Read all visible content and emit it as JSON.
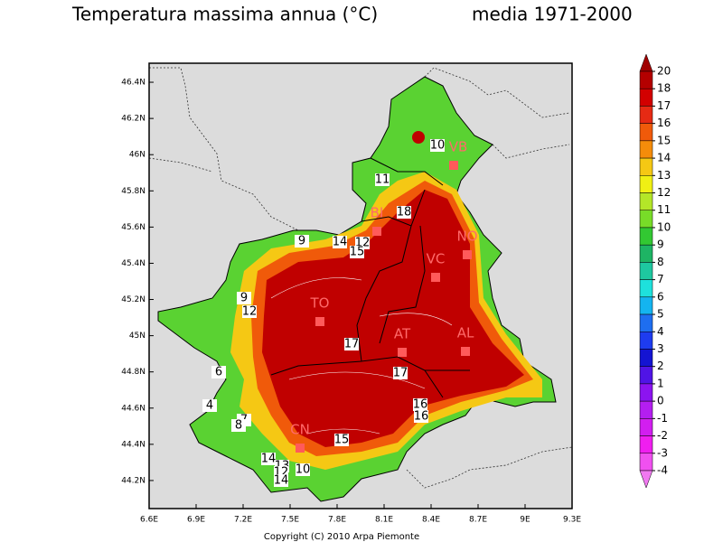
{
  "title": "Temperatura massima annua (°C)",
  "subtitle": "media 1971-2000",
  "map": {
    "xlim": [
      6.6,
      9.3
    ],
    "ylim": [
      44.045,
      46.505
    ],
    "lon_ticks": [
      {
        "value": 6.6,
        "label": "6.6E"
      },
      {
        "value": 6.9,
        "label": "6.9E"
      },
      {
        "value": 7.2,
        "label": "7.2E"
      },
      {
        "value": 7.5,
        "label": "7.5E"
      },
      {
        "value": 7.8,
        "label": "7.8E"
      },
      {
        "value": 8.1,
        "label": "8.1E"
      },
      {
        "value": 8.4,
        "label": "8.4E"
      },
      {
        "value": 8.7,
        "label": "8.7E"
      },
      {
        "value": 9,
        "label": "9E"
      },
      {
        "value": 9.3,
        "label": "9.3E"
      }
    ],
    "lat_ticks": [
      {
        "value": 46.4,
        "label": "46.4N"
      },
      {
        "value": 46.2,
        "label": "46.2N"
      },
      {
        "value": 46,
        "label": "46N"
      },
      {
        "value": 45.8,
        "label": "45.8N"
      },
      {
        "value": 45.6,
        "label": "45.6N"
      },
      {
        "value": 45.4,
        "label": "45.4N"
      },
      {
        "value": 45.2,
        "label": "45.2N"
      },
      {
        "value": 45,
        "label": "45N"
      },
      {
        "value": 44.8,
        "label": "44.8N"
      },
      {
        "value": 44.6,
        "label": "44.6N"
      },
      {
        "value": 44.4,
        "label": "44.4N"
      },
      {
        "value": 44.2,
        "label": "44.2N"
      }
    ],
    "province_labels": [
      "VB",
      "BI",
      "NO",
      "VC",
      "TO",
      "AT",
      "AL",
      "CN"
    ],
    "contour_labels": [
      10,
      11,
      18,
      9,
      14,
      12,
      15,
      9,
      12,
      17,
      17,
      6,
      4,
      7,
      8,
      16,
      16,
      15,
      14,
      13,
      10,
      12,
      14
    ]
  },
  "colorbar": {
    "levels": [
      20,
      18,
      17,
      16,
      15,
      14,
      13,
      12,
      11,
      10,
      9,
      8,
      7,
      6,
      5,
      4,
      3,
      2,
      1,
      0,
      -1,
      -2,
      -3,
      -4
    ],
    "colors": [
      "#a00000",
      "#b40000",
      "#d20000",
      "#e62a14",
      "#f05a0a",
      "#f58c0a",
      "#f5c814",
      "#f0f014",
      "#b4e628",
      "#78dc28",
      "#32c832",
      "#1eb464",
      "#1ec8a0",
      "#1ee1dc",
      "#14b4f0",
      "#1e6ef0",
      "#1e3cf0",
      "#1414d2",
      "#5014e6",
      "#8c14f0",
      "#b41ef0",
      "#d21ef0",
      "#f01ef0",
      "#f050f0",
      "#f078f0"
    ]
  },
  "copyright": "Copyright (C) 2010 Arpa Piemonte"
}
